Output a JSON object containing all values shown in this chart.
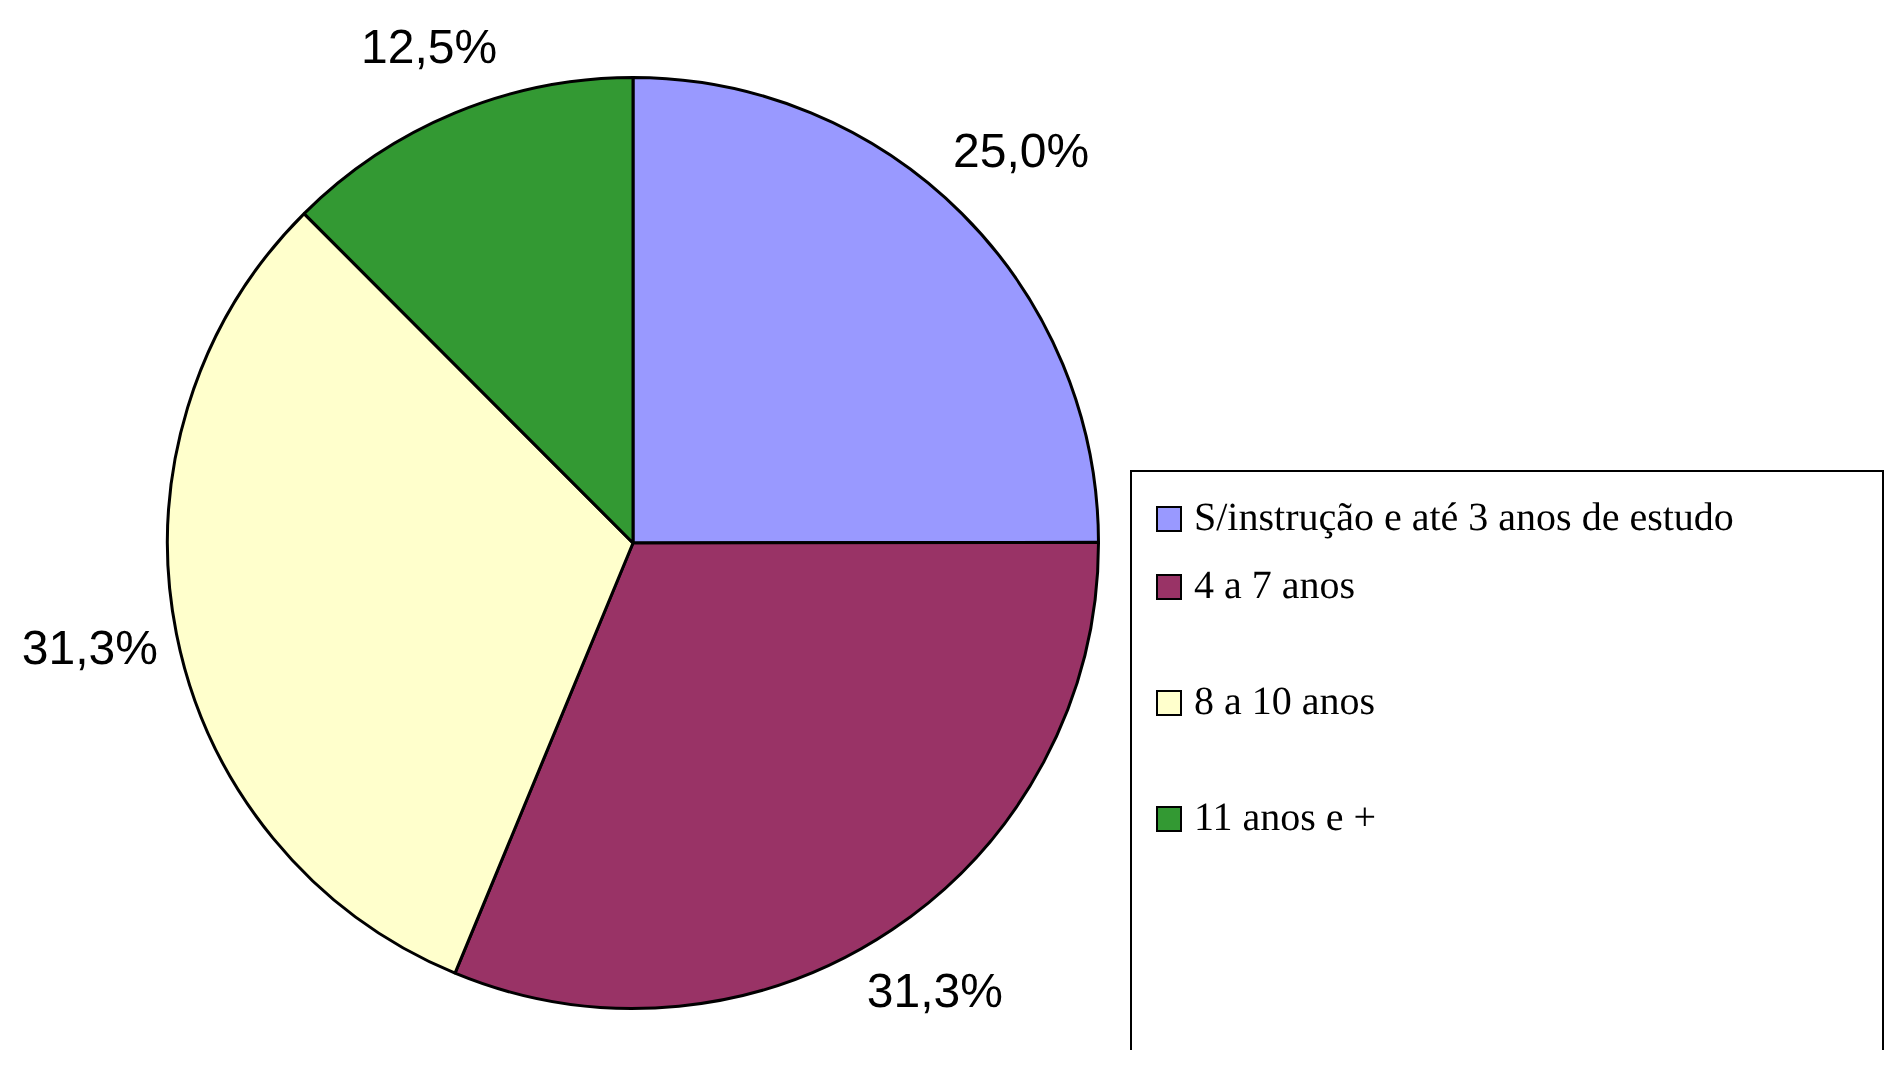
{
  "chart_data": {
    "type": "pie",
    "categories": [
      "S/instrução e até 3 anos de estudo",
      "4 a 7 anos",
      "8 a 10 anos",
      "11 anos e +"
    ],
    "values": [
      25.0,
      31.3,
      31.3,
      12.5
    ],
    "value_labels": [
      "25,0%",
      "31,3%",
      "31,3%",
      "12,5%"
    ],
    "colors": [
      "#9999ff",
      "#993366",
      "#ffffcc",
      "#339933"
    ],
    "legend": "right"
  }
}
